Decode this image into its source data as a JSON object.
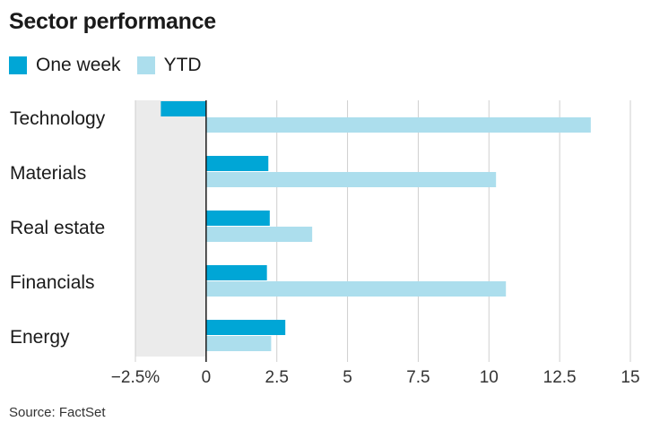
{
  "title": "Sector performance",
  "source": "Source: FactSet",
  "colors": {
    "one_week": "#00a6d6",
    "ytd": "#acdeed",
    "negative_region": "#ebebeb",
    "grid": "#cfcfcf",
    "axis": "#1a1a1a"
  },
  "chart_data": {
    "type": "bar",
    "orientation": "horizontal",
    "title": "Sector performance",
    "categories": [
      "Technology",
      "Materials",
      "Real estate",
      "Financials",
      "Energy"
    ],
    "series": [
      {
        "name": "One week",
        "values": [
          -1.6,
          2.2,
          2.25,
          2.15,
          2.8
        ]
      },
      {
        "name": "YTD",
        "values": [
          13.6,
          10.25,
          3.75,
          10.6,
          2.3
        ]
      }
    ],
    "xlim": [
      -2.5,
      15
    ],
    "ticks": [
      -2.5,
      0,
      2.5,
      5,
      7.5,
      10,
      12.5,
      15
    ],
    "tick_labels": [
      "−2.5%",
      "0",
      "2.5",
      "5",
      "7.5",
      "10",
      "12.5",
      "15"
    ],
    "legend": "top-left",
    "grid": true
  }
}
